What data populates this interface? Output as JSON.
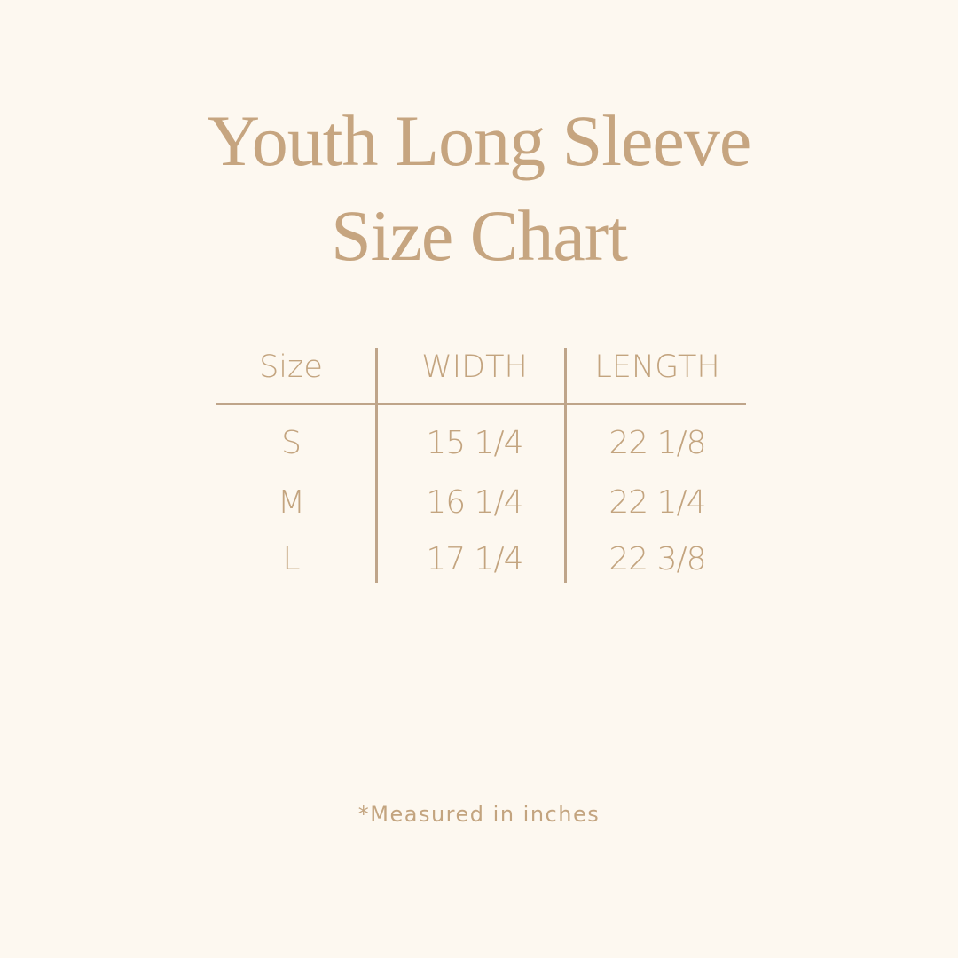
{
  "title": {
    "line1": "Youth Long Sleeve",
    "line2": "Size Chart"
  },
  "table": {
    "headers": [
      "Size",
      "WIDTH",
      "LENGTH"
    ],
    "rows": [
      [
        "S",
        "15 1/4",
        "22 1/8"
      ],
      [
        "M",
        "16 1/4",
        "22 1/4"
      ],
      [
        "L",
        "17 1/4",
        "22 3/8"
      ]
    ]
  },
  "footer": "*Measured in inches",
  "colors": {
    "background": "#fdf8f0",
    "text": "#c3a47f",
    "lines": "#bfa58a"
  }
}
